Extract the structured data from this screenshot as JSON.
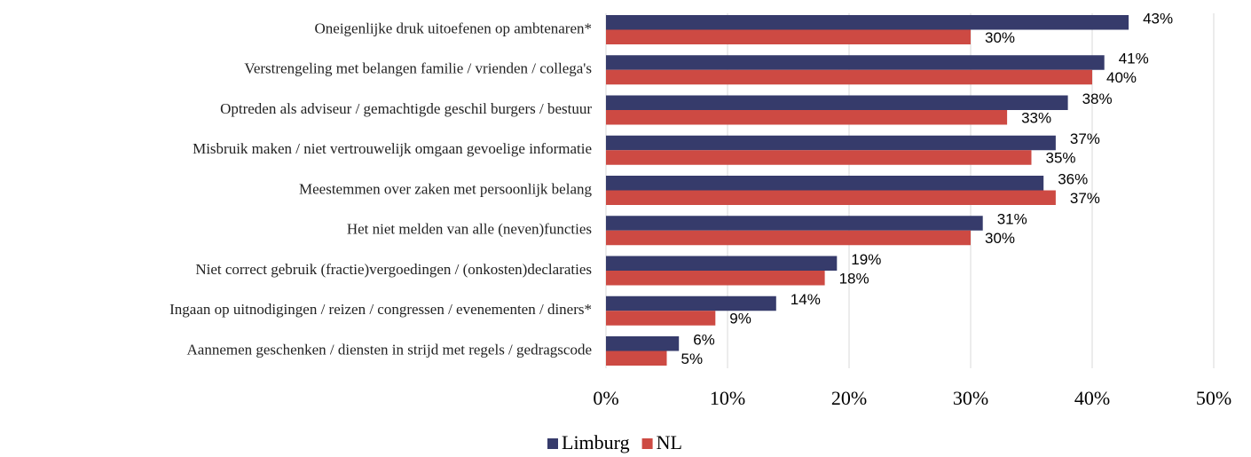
{
  "chart_data": {
    "type": "hbar",
    "categories": [
      "Oneigenlijke druk uitoefenen op ambtenaren*",
      "Verstrengeling met belangen familie / vrienden / collega's",
      "Optreden als adviseur / gemachtigde geschil burgers / bestuur",
      "Misbruik maken / niet vertrouwelijk omgaan gevoelige informatie",
      "Meestemmen over zaken met persoonlijk belang",
      "Het niet melden van alle (neven)functies",
      "Niet correct gebruik (fractie)vergoedingen / (onkosten)declaraties",
      "Ingaan op uitnodigingen / reizen / congressen / evenementen / diners*",
      "Aannemen geschenken / diensten in strijd met regels / gedragscode"
    ],
    "series": [
      {
        "name": "Limburg",
        "color": "#363b6b",
        "values": [
          43,
          41,
          38,
          37,
          36,
          31,
          19,
          14,
          6
        ],
        "value_labels": [
          "43%",
          "41%",
          "38%",
          "37%",
          "36%",
          "31%",
          "19%",
          "14%",
          "6%"
        ]
      },
      {
        "name": "NL",
        "color": "#cd4a43",
        "values": [
          30,
          40,
          33,
          35,
          37,
          30,
          18,
          9,
          5
        ],
        "value_labels": [
          "30%",
          "40%",
          "33%",
          "35%",
          "37%",
          "30%",
          "18%",
          "9%",
          "5%"
        ]
      }
    ],
    "xlim": [
      0,
      50
    ],
    "xticks": [
      {
        "value": 0,
        "label": "0%"
      },
      {
        "value": 10,
        "label": "10%"
      },
      {
        "value": 20,
        "label": "20%"
      },
      {
        "value": 30,
        "label": "30%"
      },
      {
        "value": 40,
        "label": "40%"
      },
      {
        "value": 50,
        "label": "50%"
      }
    ],
    "grid": true,
    "legend": "bottom"
  }
}
